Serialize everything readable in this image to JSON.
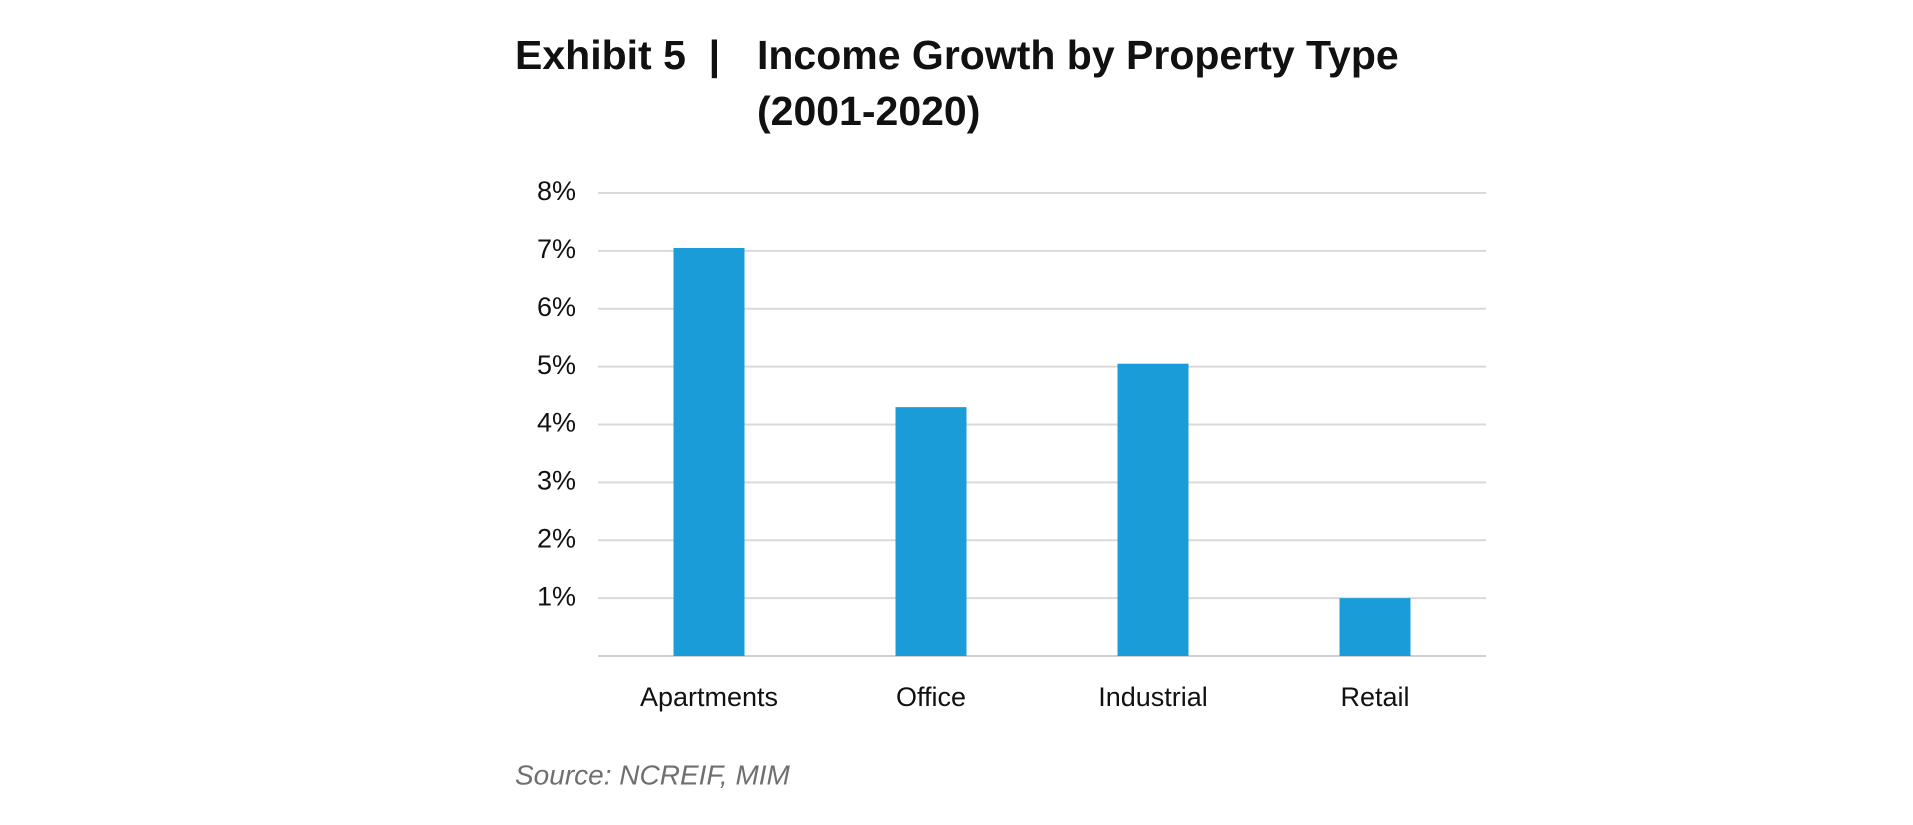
{
  "chart_data": {
    "type": "bar",
    "title_prefix": "Exhibit 5  |",
    "title": [
      "Income Growth by Property Type",
      "(2001-2020)"
    ],
    "categories": [
      "Apartments",
      "Office",
      "Industrial",
      "Retail"
    ],
    "values": [
      7.05,
      4.3,
      5.05,
      1.0
    ],
    "color": "#1a9cd8",
    "ylim": [
      0,
      8
    ],
    "yticks": [
      {
        "value": 1,
        "label": "1%"
      },
      {
        "value": 2,
        "label": "2%"
      },
      {
        "value": 3,
        "label": "3%"
      },
      {
        "value": 4,
        "label": "4%"
      },
      {
        "value": 5,
        "label": "5%"
      },
      {
        "value": 6,
        "label": "6%"
      },
      {
        "value": 7,
        "label": "7%"
      },
      {
        "value": 8,
        "label": "8%"
      }
    ],
    "grid": true,
    "source": "Source: NCREIF, MIM"
  }
}
